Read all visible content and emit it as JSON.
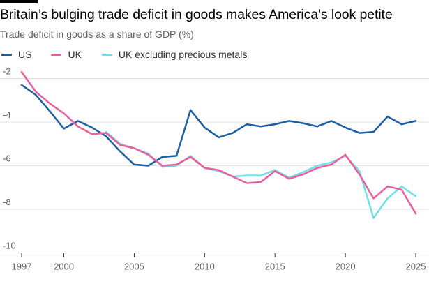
{
  "title": "Britain’s bulging trade deficit in goods makes America’s look petite",
  "subtitle": "Trade deficit in goods as a share of GDP (%)",
  "colors": {
    "us": "#1a5ea6",
    "uk": "#ee5c9d",
    "uk_ex": "#6fe0e8",
    "grid": "#e6e1dc",
    "baseline": "#33302e",
    "tick_text": "#66605c"
  },
  "chart_data": {
    "type": "line",
    "title": "Britain’s bulging trade deficit in goods makes America’s look petite",
    "subtitle": "Trade deficit in goods as a share of GDP (%)",
    "xlabel": "",
    "ylabel": "",
    "xlim": [
      1997,
      2025
    ],
    "ylim": [
      -10,
      -1.2
    ],
    "x_ticks": [
      1997,
      2000,
      2005,
      2010,
      2015,
      2020,
      2025
    ],
    "x_tick_labels": [
      "1997",
      "2000",
      "2005",
      "2010",
      "2015",
      "2020",
      "2025"
    ],
    "y_ticks": [
      -2,
      -4,
      -6,
      -8,
      -10
    ],
    "y_tick_labels": [
      "-2",
      "-4",
      "-6",
      "-8",
      "-10"
    ],
    "grid": true,
    "legend_position": "top-left",
    "series": [
      {
        "name": "US",
        "color": "#1a5ea6",
        "points": [
          [
            1997,
            -2.3
          ],
          [
            1998,
            -2.75
          ],
          [
            1999,
            -3.5
          ],
          [
            2000,
            -4.3
          ],
          [
            2001,
            -3.95
          ],
          [
            2002,
            -4.25
          ],
          [
            2003,
            -4.65
          ],
          [
            2004,
            -5.35
          ],
          [
            2005,
            -5.95
          ],
          [
            2006,
            -6.0
          ],
          [
            2007,
            -5.6
          ],
          [
            2008,
            -5.55
          ],
          [
            2009,
            -3.45
          ],
          [
            2010,
            -4.25
          ],
          [
            2011,
            -4.7
          ],
          [
            2012,
            -4.5
          ],
          [
            2013,
            -4.1
          ],
          [
            2014,
            -4.2
          ],
          [
            2015,
            -4.1
          ],
          [
            2016,
            -3.95
          ],
          [
            2017,
            -4.05
          ],
          [
            2018,
            -4.2
          ],
          [
            2019,
            -3.95
          ],
          [
            2020,
            -4.25
          ],
          [
            2021,
            -4.5
          ],
          [
            2022,
            -4.45
          ],
          [
            2023,
            -3.75
          ],
          [
            2024,
            -4.1
          ],
          [
            2025,
            -3.95
          ]
        ]
      },
      {
        "name": "UK",
        "color": "#ee5c9d",
        "points": [
          [
            1997,
            -1.7
          ],
          [
            1998,
            -2.6
          ],
          [
            1999,
            -3.15
          ],
          [
            2000,
            -3.6
          ],
          [
            2001,
            -4.2
          ],
          [
            2002,
            -4.55
          ],
          [
            2003,
            -4.5
          ],
          [
            2004,
            -5.05
          ],
          [
            2005,
            -5.2
          ],
          [
            2006,
            -5.5
          ],
          [
            2007,
            -6.0
          ],
          [
            2008,
            -5.95
          ],
          [
            2009,
            -5.6
          ],
          [
            2010,
            -6.1
          ],
          [
            2011,
            -6.2
          ],
          [
            2012,
            -6.5
          ],
          [
            2013,
            -6.8
          ],
          [
            2014,
            -6.75
          ],
          [
            2015,
            -6.25
          ],
          [
            2016,
            -6.6
          ],
          [
            2017,
            -6.4
          ],
          [
            2018,
            -6.1
          ],
          [
            2019,
            -5.95
          ],
          [
            2020,
            -5.5
          ],
          [
            2021,
            -6.4
          ],
          [
            2022,
            -7.5
          ],
          [
            2023,
            -6.95
          ],
          [
            2024,
            -7.1
          ],
          [
            2025,
            -8.2
          ]
        ]
      },
      {
        "name": "UK excluding precious metals",
        "color": "#6fe0e8",
        "points": [
          [
            2003,
            -4.45
          ],
          [
            2004,
            -5.0
          ],
          [
            2005,
            -5.2
          ],
          [
            2006,
            -5.45
          ],
          [
            2007,
            -6.05
          ],
          [
            2008,
            -6.0
          ],
          [
            2009,
            -5.55
          ],
          [
            2010,
            -6.1
          ],
          [
            2011,
            -6.25
          ],
          [
            2012,
            -6.5
          ],
          [
            2013,
            -6.45
          ],
          [
            2014,
            -6.45
          ],
          [
            2015,
            -6.2
          ],
          [
            2016,
            -6.55
          ],
          [
            2017,
            -6.3
          ],
          [
            2018,
            -6.0
          ],
          [
            2019,
            -5.85
          ],
          [
            2020,
            -5.55
          ],
          [
            2021,
            -6.25
          ],
          [
            2022,
            -8.4
          ],
          [
            2023,
            -7.5
          ],
          [
            2024,
            -6.95
          ],
          [
            2025,
            -7.4
          ]
        ]
      }
    ]
  }
}
